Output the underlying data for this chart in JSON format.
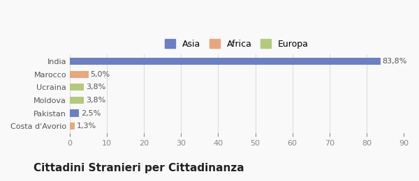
{
  "categories": [
    "Costa d'Avorio",
    "Pakistan",
    "Moldova",
    "Ucraina",
    "Marocco",
    "India"
  ],
  "values": [
    1.3,
    2.5,
    3.8,
    3.8,
    5.0,
    83.8
  ],
  "colors": [
    "#e8a87c",
    "#6b7fc4",
    "#b5c97a",
    "#b5c97a",
    "#e8a87c",
    "#6b7fc4"
  ],
  "labels": [
    "1,3%",
    "2,5%",
    "3,8%",
    "3,8%",
    "5,0%",
    "83,8%"
  ],
  "legend_entries": [
    {
      "label": "Asia",
      "color": "#6b7fc4"
    },
    {
      "label": "Africa",
      "color": "#e8a87c"
    },
    {
      "label": "Europa",
      "color": "#b5c97a"
    }
  ],
  "xlim": [
    0,
    90
  ],
  "xticks": [
    0,
    10,
    20,
    30,
    40,
    50,
    60,
    70,
    80,
    90
  ],
  "title": "Cittadini Stranieri per Cittadinanza",
  "bg_color": "#f9f9f9",
  "bar_height": 0.55,
  "grid_color": "#dddddd",
  "title_fontsize": 11,
  "subtitle_fontsize": 8,
  "label_fontsize": 8,
  "tick_fontsize": 8
}
